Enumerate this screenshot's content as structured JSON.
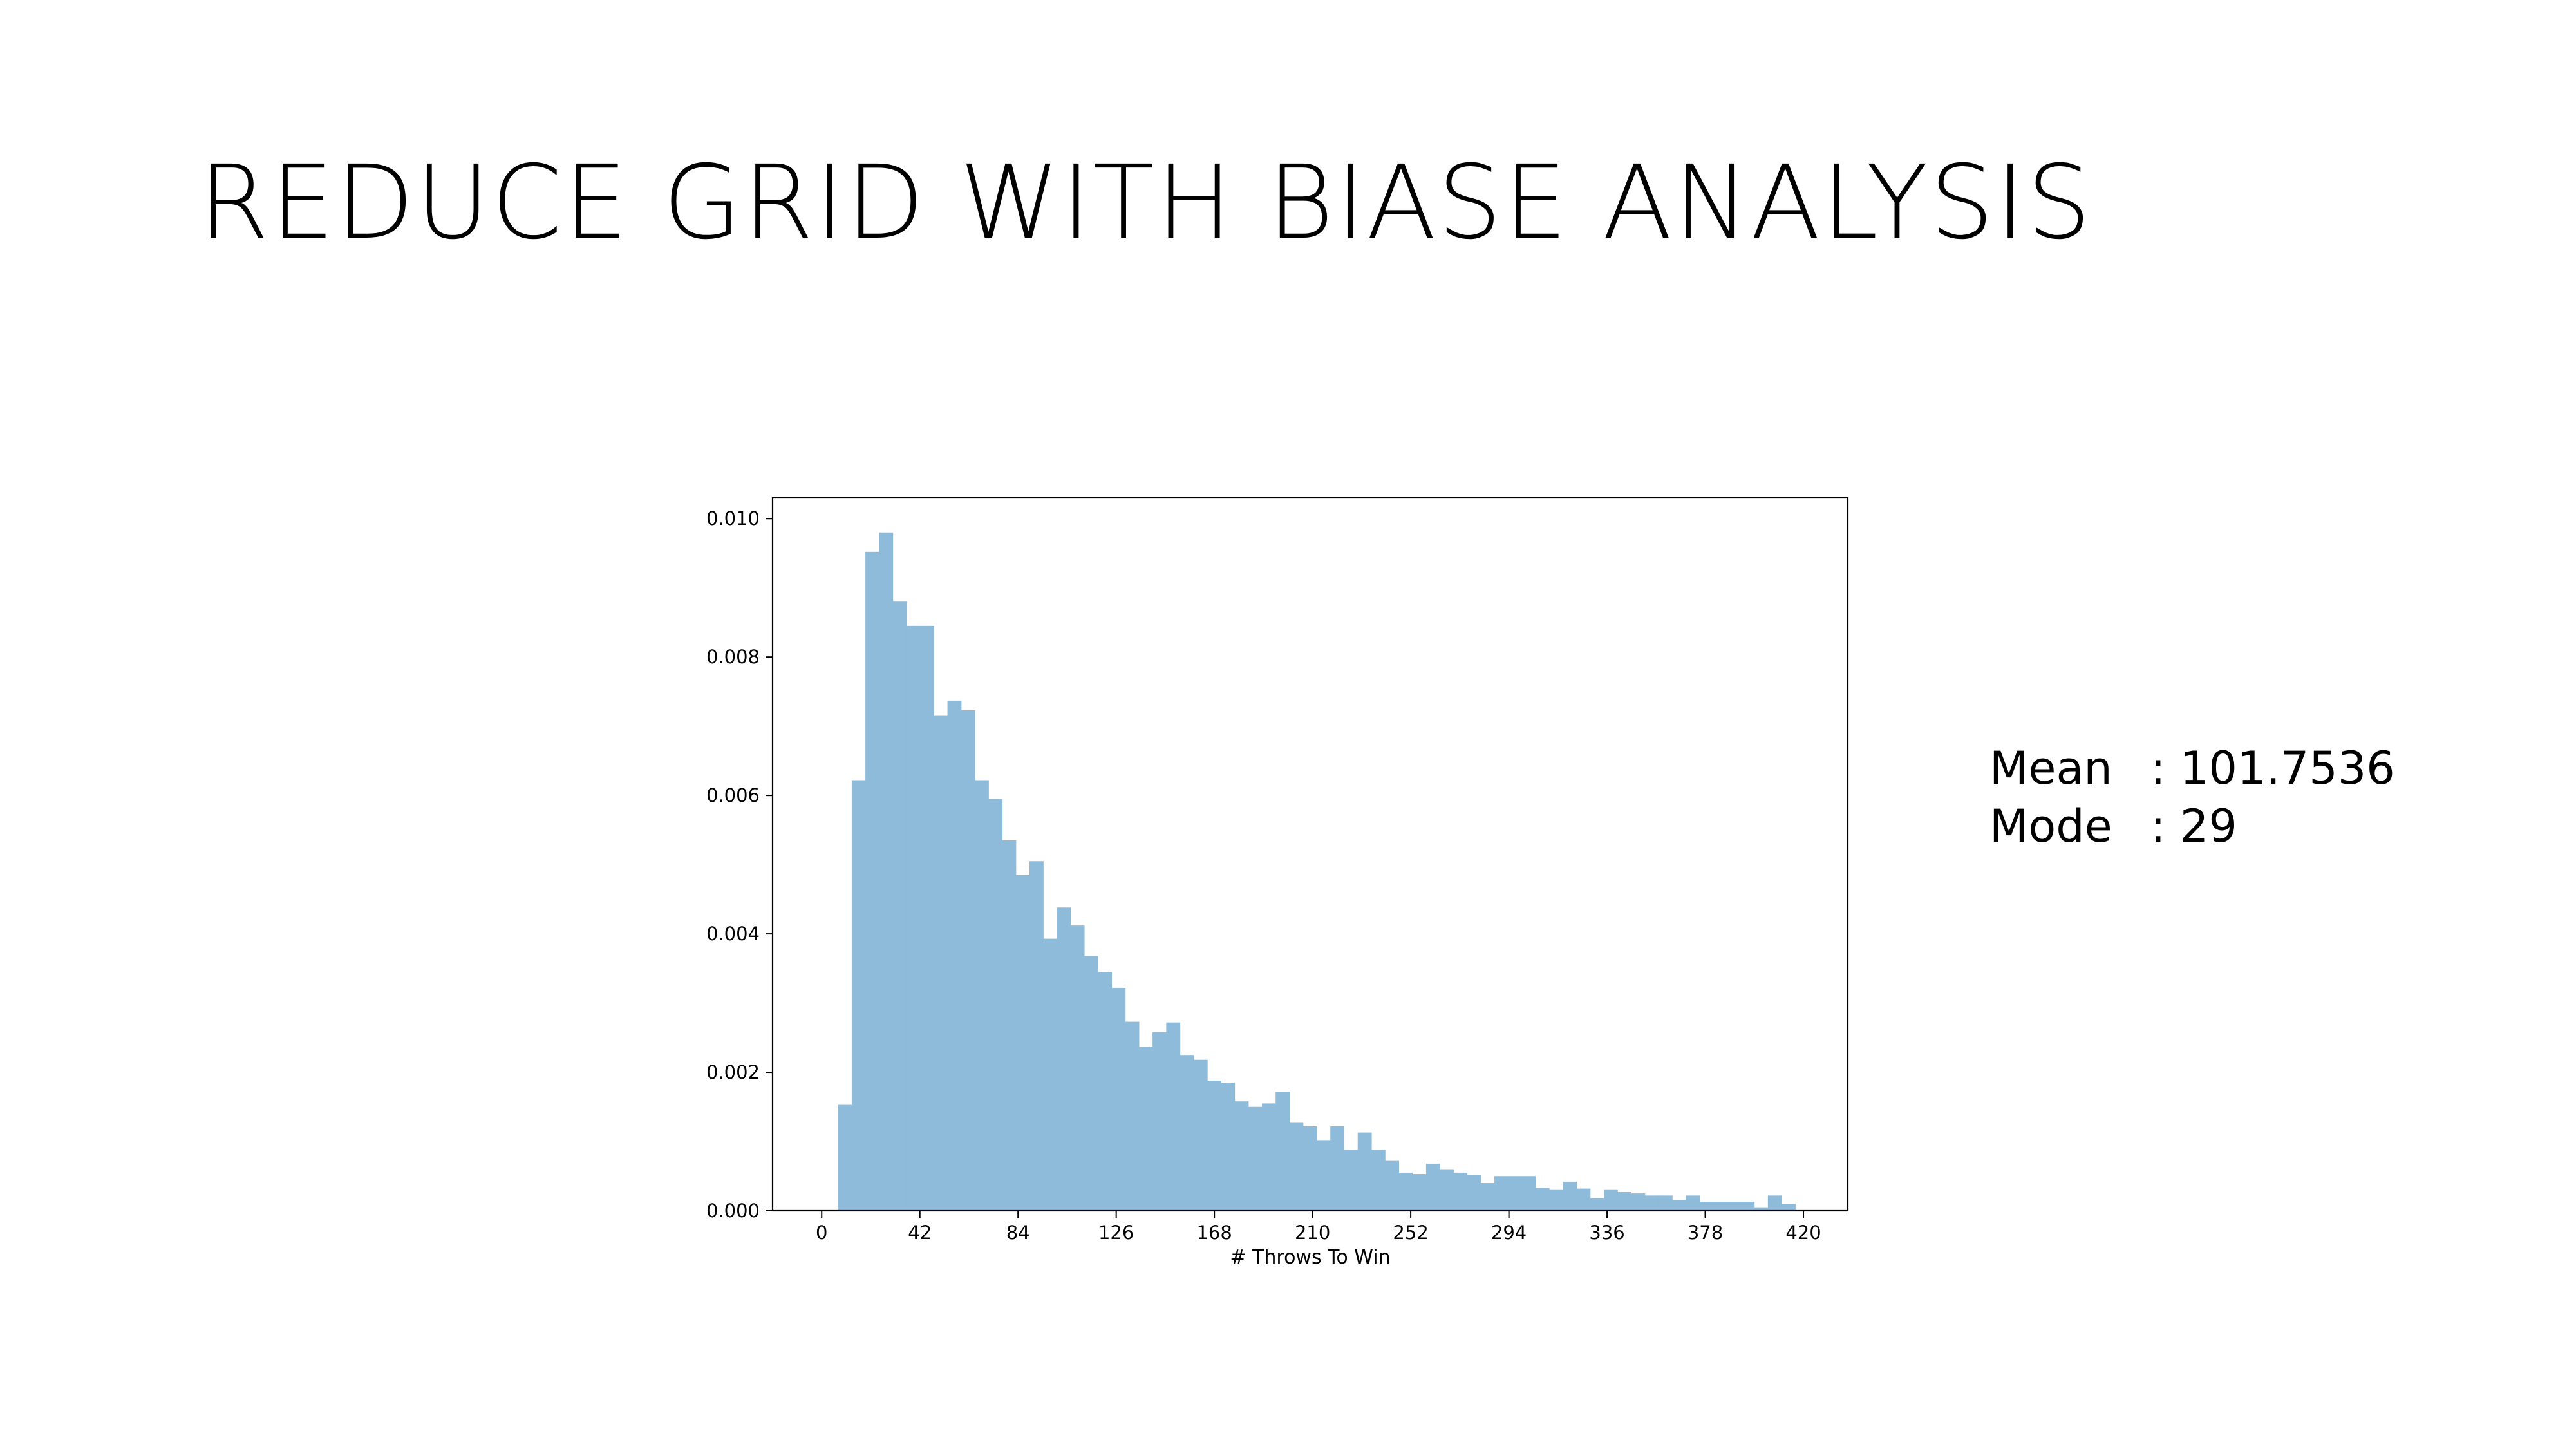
{
  "slide": {
    "title": "REDUCE GRID WITH BIASE ANALYSIS"
  },
  "stats": {
    "mean_label": "Mean",
    "mean_value": ": 101.7536",
    "mode_label": "Mode",
    "mode_value": ": 29"
  },
  "chart_data": {
    "type": "bar",
    "title": "",
    "xlabel": "# Throws To Win",
    "ylabel": "",
    "xlim": [
      -21,
      439
    ],
    "ylim": [
      0,
      0.0103
    ],
    "x_ticks": [
      "0",
      "42",
      "84",
      "126",
      "168",
      "210",
      "252",
      "294",
      "336",
      "378",
      "420"
    ],
    "y_ticks": [
      "0.000",
      "0.002",
      "0.004",
      "0.006",
      "0.008",
      "0.010"
    ],
    "bin_start": 7,
    "bin_width": 5.85,
    "values": [
      0.00153,
      0.00622,
      0.00952,
      0.0098,
      0.0088,
      0.00845,
      0.00845,
      0.00715,
      0.00737,
      0.00723,
      0.00622,
      0.00595,
      0.00535,
      0.00485,
      0.00505,
      0.00393,
      0.00438,
      0.00412,
      0.00368,
      0.00345,
      0.00322,
      0.00273,
      0.00237,
      0.00258,
      0.00272,
      0.00225,
      0.00218,
      0.00188,
      0.00185,
      0.00158,
      0.0015,
      0.00155,
      0.00172,
      0.00127,
      0.00122,
      0.00102,
      0.00122,
      0.00088,
      0.00113,
      0.00088,
      0.00072,
      0.00055,
      0.00053,
      0.00068,
      0.0006,
      0.00055,
      0.00052,
      0.0004,
      0.0005,
      0.0005,
      0.0005,
      0.00033,
      0.0003,
      0.00042,
      0.00032,
      0.00018,
      0.0003,
      0.00027,
      0.00025,
      0.00022,
      0.00022,
      0.00015,
      0.00022,
      0.00013,
      0.00013,
      0.00013,
      0.00013,
      5e-05,
      0.00022,
      0.0001
    ],
    "bar_color": "#8fbbda",
    "grid": false,
    "legend": "none"
  }
}
